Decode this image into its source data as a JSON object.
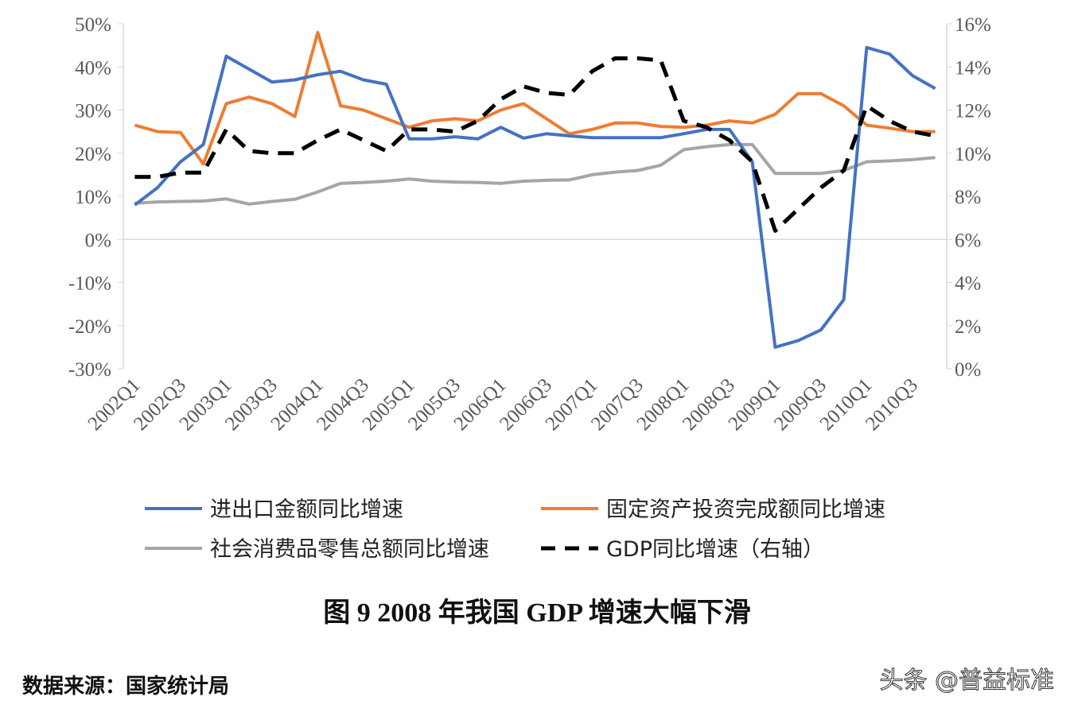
{
  "chart_data": {
    "type": "line",
    "title": "图 9   2008 年我国 GDP 增速大幅下滑",
    "source": "数据来源：国家统计局",
    "watermark": "头条 @普益标准",
    "categories": [
      "2002Q1",
      "2002Q2",
      "2002Q3",
      "2002Q4",
      "2003Q1",
      "2003Q2",
      "2003Q3",
      "2003Q4",
      "2004Q1",
      "2004Q2",
      "2004Q3",
      "2004Q4",
      "2005Q1",
      "2005Q2",
      "2005Q3",
      "2005Q4",
      "2006Q1",
      "2006Q2",
      "2006Q3",
      "2006Q4",
      "2007Q1",
      "2007Q2",
      "2007Q3",
      "2007Q4",
      "2008Q1",
      "2008Q2",
      "2008Q3",
      "2008Q4",
      "2009Q1",
      "2009Q2",
      "2009Q3",
      "2009Q4",
      "2010Q1",
      "2010Q2",
      "2010Q3",
      "2010Q4"
    ],
    "tick_labels": [
      "2002Q1",
      "2002Q3",
      "2003Q1",
      "2003Q3",
      "2004Q1",
      "2004Q3",
      "2005Q1",
      "2005Q3",
      "2006Q1",
      "2006Q3",
      "2007Q1",
      "2007Q3",
      "2008Q1",
      "2008Q3",
      "2009Q1",
      "2009Q3",
      "2010Q1",
      "2010Q3"
    ],
    "left_axis": {
      "ylim": [
        -30,
        50
      ],
      "ticks": [
        "50%",
        "40%",
        "30%",
        "20%",
        "10%",
        "0%",
        "-10%",
        "-20%",
        "-30%"
      ]
    },
    "right_axis": {
      "ylim": [
        0,
        16
      ],
      "ticks": [
        "16%",
        "14%",
        "12%",
        "10%",
        "8%",
        "6%",
        "4%",
        "2%",
        "0%"
      ]
    },
    "legend_position": "bottom",
    "series": [
      {
        "name": "进出口金额同比增速",
        "axis": "left",
        "color": "#4472C4",
        "dash": false,
        "values": [
          8,
          12,
          18,
          22,
          42.5,
          39.5,
          36.5,
          37,
          38.2,
          39,
          37,
          36,
          23.3,
          23.3,
          23.8,
          23.3,
          26,
          23.5,
          24.5,
          24,
          23.6,
          23.6,
          23.6,
          23.6,
          24.5,
          25.5,
          25.5,
          18,
          -25,
          -23.5,
          -21,
          -14,
          44.5,
          43,
          38,
          35
        ]
      },
      {
        "name": "固定资产投资完成额同比增速",
        "axis": "left",
        "color": "#ED7D31",
        "dash": false,
        "values": [
          26.5,
          25,
          24.8,
          17.5,
          31.5,
          33,
          31.5,
          28.5,
          48,
          31,
          30,
          28,
          26,
          27.5,
          28,
          27.5,
          30,
          31.5,
          28,
          24.5,
          25.5,
          27,
          27,
          26.2,
          26,
          26.5,
          27.5,
          27,
          29,
          33.8,
          33.8,
          31,
          26.5,
          25.8,
          25,
          25
        ]
      },
      {
        "name": "社会消费品零售总额同比增速",
        "axis": "left",
        "color": "#A5A5A5",
        "dash": false,
        "values": [
          8.4,
          8.7,
          8.8,
          8.9,
          9.4,
          8.2,
          8.8,
          9.3,
          11,
          13,
          13.2,
          13.5,
          14,
          13.5,
          13.3,
          13.2,
          13,
          13.5,
          13.7,
          13.8,
          15,
          15.6,
          16,
          17.2,
          20.8,
          21.5,
          22,
          22,
          15.3,
          15.3,
          15.3,
          16,
          18,
          18.2,
          18.5,
          19
        ]
      },
      {
        "name": "GDP同比增速（右轴）",
        "axis": "right",
        "color": "#000000",
        "dash": true,
        "values": [
          8.9,
          8.9,
          9.1,
          9.1,
          11.1,
          10.1,
          10.0,
          10.0,
          10.6,
          11.1,
          10.6,
          10.1,
          11.1,
          11.1,
          11.0,
          11.5,
          12.5,
          13.1,
          12.8,
          12.7,
          13.8,
          14.4,
          14.4,
          14.3,
          11.5,
          11.2,
          10.6,
          9.6,
          6.4,
          7.4,
          8.4,
          9.2,
          12.2,
          11.5,
          11.0,
          10.8
        ]
      }
    ]
  }
}
